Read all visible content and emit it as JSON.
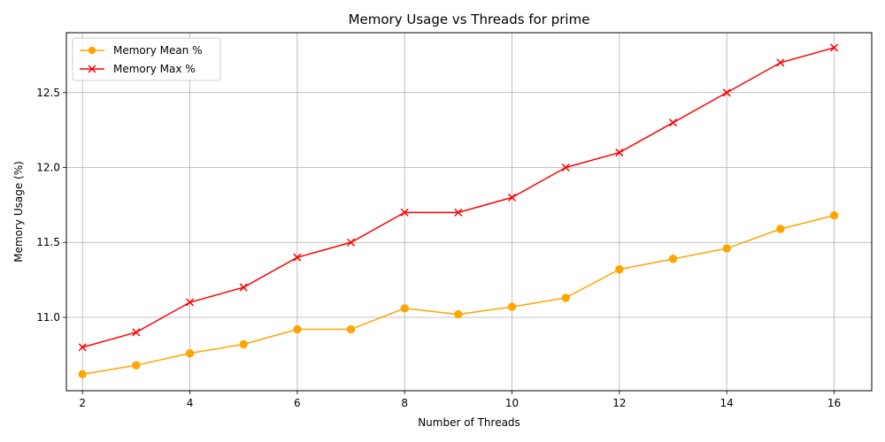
{
  "chart_data": {
    "type": "line",
    "title": "Memory Usage vs Threads for prime",
    "xlabel": "Number of Threads",
    "ylabel": "Memory Usage (%)",
    "x": [
      2,
      3,
      4,
      5,
      6,
      7,
      8,
      9,
      10,
      11,
      12,
      13,
      14,
      15,
      16
    ],
    "xlim": [
      1.7,
      16.7
    ],
    "ylim": [
      10.51,
      12.9
    ],
    "x_ticks": [
      2,
      4,
      6,
      8,
      10,
      12,
      14,
      16
    ],
    "x_tick_labels": [
      "2",
      "4",
      "6",
      "8",
      "10",
      "12",
      "14",
      "16"
    ],
    "y_ticks": [
      11.0,
      11.5,
      12.0,
      12.5
    ],
    "y_tick_labels": [
      "11.0",
      "11.5",
      "12.0",
      "12.5"
    ],
    "grid": true,
    "legend_position": "top-left",
    "series": [
      {
        "name": "Memory Mean %",
        "marker": "circle",
        "color": "#FFA500",
        "values": [
          10.62,
          10.68,
          10.76,
          10.82,
          10.92,
          10.92,
          11.06,
          11.02,
          11.07,
          11.13,
          11.32,
          11.39,
          11.46,
          11.59,
          11.68
        ]
      },
      {
        "name": "Memory Max %",
        "marker": "x",
        "color": "#FF0000",
        "values": [
          10.8,
          10.9,
          11.1,
          11.2,
          11.4,
          11.5,
          11.7,
          11.7,
          11.8,
          12.0,
          12.1,
          12.3,
          12.5,
          12.7,
          12.8
        ]
      }
    ]
  }
}
